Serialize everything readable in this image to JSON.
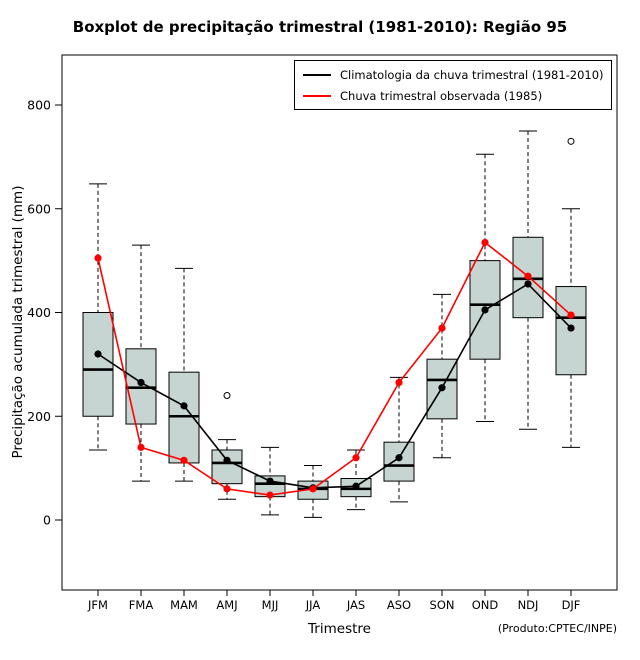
{
  "chart_data": {
    "type": "boxplot",
    "title": "Boxplot de precipitação trimestral (1981-2010): Região 95",
    "xlabel": "Trimestre",
    "ylabel": "Precipitação acumulada trimestral (mm)",
    "credit": "(Produto:CPTEC/INPE)",
    "yticks": [
      0,
      200,
      400,
      600,
      800
    ],
    "ylim": [
      -135,
      895
    ],
    "grid": false,
    "legend_position": "top-right-inside",
    "box_fill": "#c6d5d1",
    "categories": [
      "JFM",
      "FMA",
      "MAM",
      "AMJ",
      "MJJ",
      "JJA",
      "JAS",
      "ASO",
      "SON",
      "OND",
      "NDJ",
      "DJF"
    ],
    "boxes": [
      {
        "whislo": 135,
        "q1": 200,
        "med": 290,
        "q3": 400,
        "whishi": 648,
        "outliers": []
      },
      {
        "whislo": 75,
        "q1": 185,
        "med": 255,
        "q3": 330,
        "whishi": 530,
        "outliers": []
      },
      {
        "whislo": 75,
        "q1": 110,
        "med": 200,
        "q3": 285,
        "whishi": 485,
        "outliers": []
      },
      {
        "whislo": 40,
        "q1": 70,
        "med": 110,
        "q3": 135,
        "whishi": 155,
        "outliers": [
          240
        ]
      },
      {
        "whislo": 10,
        "q1": 45,
        "med": 70,
        "q3": 85,
        "whishi": 140,
        "outliers": []
      },
      {
        "whislo": 5,
        "q1": 40,
        "med": 60,
        "q3": 75,
        "whishi": 105,
        "outliers": []
      },
      {
        "whislo": 20,
        "q1": 45,
        "med": 60,
        "q3": 80,
        "whishi": 135,
        "outliers": []
      },
      {
        "whislo": 35,
        "q1": 75,
        "med": 105,
        "q3": 150,
        "whishi": 275,
        "outliers": []
      },
      {
        "whislo": 120,
        "q1": 195,
        "med": 270,
        "q3": 310,
        "whishi": 435,
        "outliers": []
      },
      {
        "whislo": 190,
        "q1": 310,
        "med": 415,
        "q3": 500,
        "whishi": 705,
        "outliers": []
      },
      {
        "whislo": 175,
        "q1": 390,
        "med": 465,
        "q3": 545,
        "whishi": 750,
        "outliers": []
      },
      {
        "whislo": 140,
        "q1": 280,
        "med": 390,
        "q3": 450,
        "whishi": 600,
        "outliers": [
          730
        ]
      }
    ],
    "series": [
      {
        "name": "Climatologia da chuva trimestral (1981-2010)",
        "color": "#000000",
        "values": [
          320,
          265,
          220,
          115,
          75,
          62,
          65,
          120,
          255,
          405,
          455,
          370
        ]
      },
      {
        "name": "Chuva trimestral observada (1985)",
        "color": "#ff0000",
        "values": [
          505,
          140,
          115,
          60,
          48,
          60,
          120,
          265,
          370,
          535,
          470,
          395
        ]
      }
    ]
  }
}
